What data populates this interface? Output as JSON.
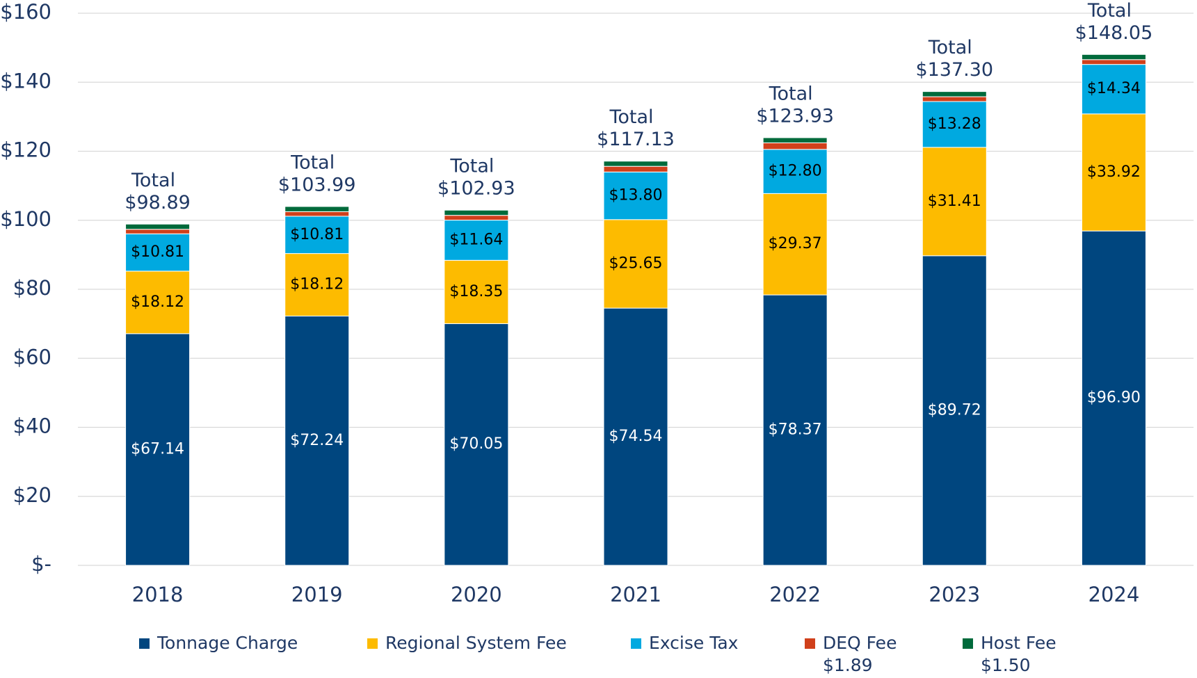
{
  "chart_data": {
    "type": "stacked_bar",
    "categories": [
      "2018",
      "2019",
      "2020",
      "2021",
      "2022",
      "2023",
      "2024"
    ],
    "series": [
      {
        "name": "Tonnage Charge",
        "color": "#00467f",
        "values": [
          67.14,
          72.24,
          70.05,
          74.54,
          78.37,
          89.72,
          96.9
        ],
        "value_labels": [
          "$67.14",
          "$72.24",
          "$70.05",
          "$74.54",
          "$78.37",
          "$89.72",
          "$96.90"
        ]
      },
      {
        "name": "Regional System Fee",
        "color": "#fdbb00",
        "values": [
          18.12,
          18.12,
          18.35,
          25.65,
          29.37,
          31.41,
          33.92
        ],
        "value_labels": [
          "$18.12",
          "$18.12",
          "$18.35",
          "$25.65",
          "$29.37",
          "$31.41",
          "$33.92"
        ]
      },
      {
        "name": "Excise Tax",
        "color": "#00a9e0",
        "values": [
          10.81,
          10.81,
          11.64,
          13.8,
          12.8,
          13.28,
          14.34
        ],
        "value_labels": [
          "$10.81",
          "$10.81",
          "$11.64",
          "$13.80",
          "$12.80",
          "$13.28",
          "$14.34"
        ]
      },
      {
        "name": "DEQ Fee",
        "note": "$1.89",
        "color": "#d0401b",
        "values": [
          1.32,
          1.32,
          1.39,
          1.64,
          1.89,
          1.39,
          1.39
        ]
      },
      {
        "name": "Host Fee",
        "note": "$1.50",
        "color": "#006a3b",
        "values": [
          1.5,
          1.5,
          1.5,
          1.5,
          1.5,
          1.5,
          1.5
        ]
      }
    ],
    "totals": {
      "label": "Total",
      "values": [
        98.89,
        103.99,
        102.93,
        117.13,
        123.93,
        137.3,
        148.05
      ],
      "value_labels": [
        "$98.89",
        "$103.99",
        "$102.93",
        "$117.13",
        "$123.93",
        "$137.30",
        "$148.05"
      ]
    },
    "ylim": [
      0,
      160
    ],
    "yticks": [
      {
        "value": 0,
        "label": "$-"
      },
      {
        "value": 20,
        "label": "$20"
      },
      {
        "value": 40,
        "label": "$40"
      },
      {
        "value": 60,
        "label": "$60"
      },
      {
        "value": 80,
        "label": "$80"
      },
      {
        "value": 100,
        "label": "$100"
      },
      {
        "value": 120,
        "label": "$120"
      },
      {
        "value": 140,
        "label": "$140"
      },
      {
        "value": 160,
        "label": "$160"
      }
    ],
    "grid": true,
    "legend": "bottom"
  }
}
